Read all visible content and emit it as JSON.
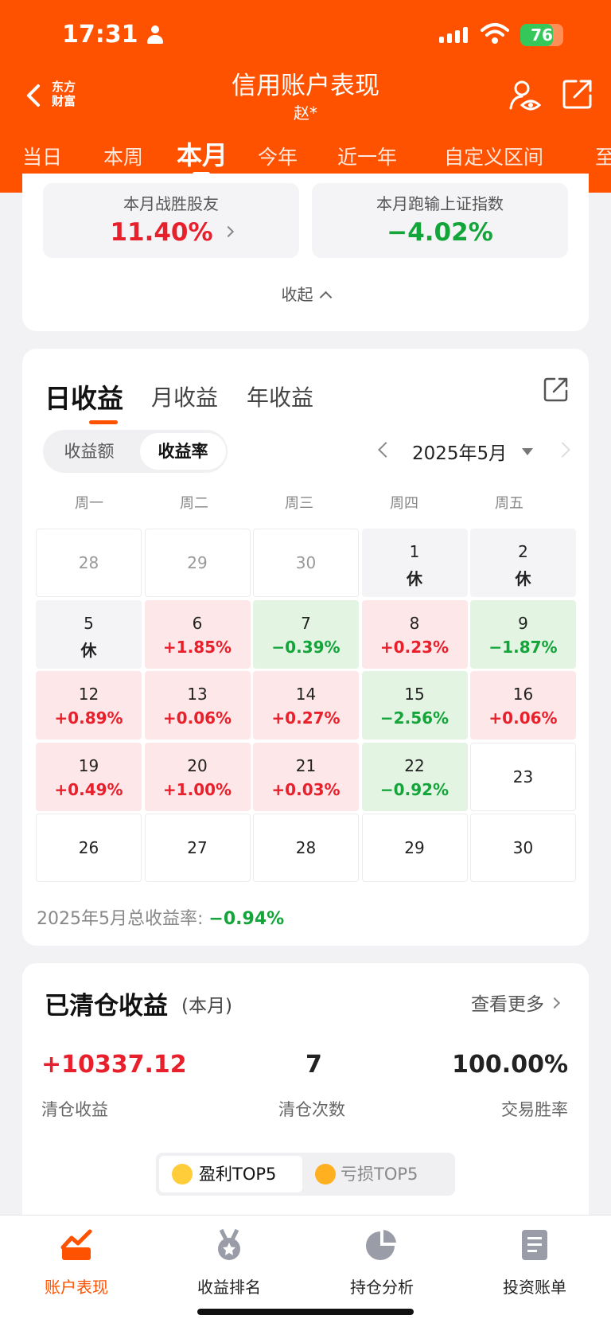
{
  "status_bar": {
    "time": "17:31",
    "battery": "76",
    "battery_level": 0.76
  },
  "header": {
    "logo_line1": "东方",
    "logo_line2": "财富",
    "title": "信用账户表现",
    "subtitle": "赵*",
    "tabs": [
      "当日",
      "本周",
      "本月",
      "今年",
      "近一年",
      "自定义区间",
      "至"
    ],
    "active_tab": "本月"
  },
  "summary": {
    "beat_label": "本月战胜股友",
    "beat_value": "11.40%",
    "index_label": "本月跑输上证指数",
    "index_value": "−4.02%",
    "collapse_label": "收起"
  },
  "returns": {
    "tabs": [
      "日收益",
      "月收益",
      "年收益"
    ],
    "active_tab": "日收益",
    "segment": [
      "收益额",
      "收益率"
    ],
    "segment_active": "收益率",
    "month_label": "2025年5月",
    "weekdays": [
      "周一",
      "周二",
      "周三",
      "周四",
      "周五"
    ],
    "calendar": [
      [
        {
          "d": "28",
          "k": "prev"
        },
        {
          "d": "29",
          "k": "prev"
        },
        {
          "d": "30",
          "k": "prev"
        },
        {
          "d": "1",
          "v": "休",
          "k": "rest"
        },
        {
          "d": "2",
          "v": "休",
          "k": "rest"
        }
      ],
      [
        {
          "d": "5",
          "v": "休",
          "k": "rest"
        },
        {
          "d": "6",
          "v": "+1.85%",
          "k": "up"
        },
        {
          "d": "7",
          "v": "−0.39%",
          "k": "dn"
        },
        {
          "d": "8",
          "v": "+0.23%",
          "k": "up"
        },
        {
          "d": "9",
          "v": "−1.87%",
          "k": "dn"
        }
      ],
      [
        {
          "d": "12",
          "v": "+0.89%",
          "k": "up"
        },
        {
          "d": "13",
          "v": "+0.06%",
          "k": "up"
        },
        {
          "d": "14",
          "v": "+0.27%",
          "k": "up"
        },
        {
          "d": "15",
          "v": "−2.56%",
          "k": "dn"
        },
        {
          "d": "16",
          "v": "+0.06%",
          "k": "up"
        }
      ],
      [
        {
          "d": "19",
          "v": "+0.49%",
          "k": "up"
        },
        {
          "d": "20",
          "v": "+1.00%",
          "k": "up"
        },
        {
          "d": "21",
          "v": "+0.03%",
          "k": "up"
        },
        {
          "d": "22",
          "v": "−0.92%",
          "k": "dn"
        },
        {
          "d": "23",
          "k": "future"
        }
      ],
      [
        {
          "d": "26",
          "k": "future"
        },
        {
          "d": "27",
          "k": "future"
        },
        {
          "d": "28",
          "k": "future"
        },
        {
          "d": "29",
          "k": "future"
        },
        {
          "d": "30",
          "k": "future"
        }
      ]
    ],
    "total_label": "2025年5月总收益率:",
    "total_value": "−0.94%"
  },
  "cleared": {
    "title": "已清仓收益",
    "period": "(本月)",
    "more_label": "查看更多",
    "profit_value": "+10337.12",
    "profit_label": "清仓收益",
    "count_value": "7",
    "count_label": "清仓次数",
    "winrate_value": "100.00%",
    "winrate_label": "交易胜率",
    "toggle_on": "盈利TOP5",
    "toggle_off": "亏损TOP5"
  },
  "bottom_nav": [
    {
      "label": "账户表现",
      "icon": "chart-trend-icon",
      "active": true
    },
    {
      "label": "收益排名",
      "icon": "medal-icon",
      "active": false
    },
    {
      "label": "持仓分析",
      "icon": "pie-chart-icon",
      "active": false
    },
    {
      "label": "投资账单",
      "icon": "bill-list-icon",
      "active": false
    }
  ],
  "colors": {
    "brand": "#ff5200",
    "up": "#e8202c",
    "down": "#13a43a"
  }
}
